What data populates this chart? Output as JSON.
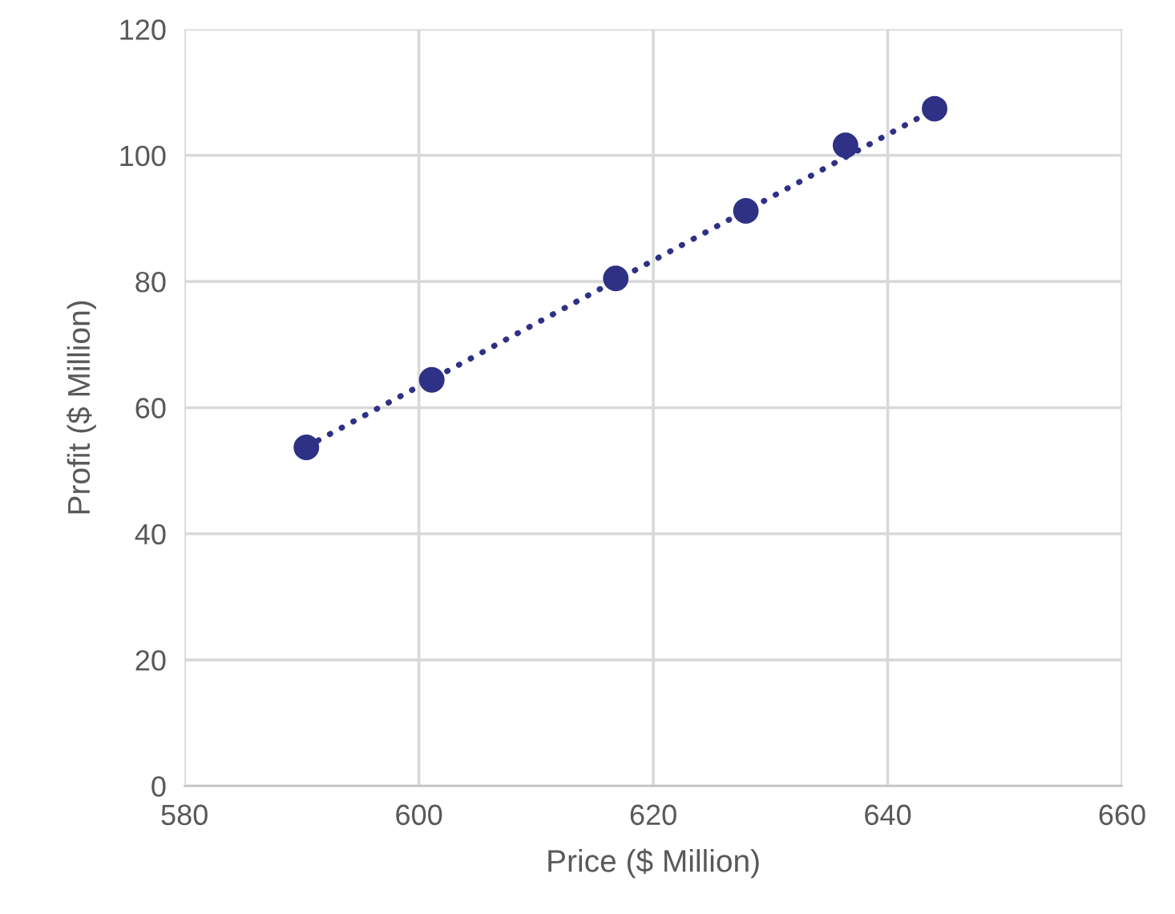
{
  "chart_data": {
    "type": "scatter",
    "xlabel": "Price ($ Million)",
    "ylabel": "Profit ($ Million)",
    "x": [
      590.4,
      601.1,
      616.8,
      627.9,
      636.4,
      644.0
    ],
    "series": [
      {
        "color": "#2e3185",
        "values": [
          53.7,
          64.4,
          80.5,
          91.2,
          101.6,
          107.4
        ],
        "marker": "circle"
      },
      {
        "type": "line",
        "color": "#2e3185",
        "x": [
          590.4,
          644.0
        ],
        "values": [
          53.8,
          107.3
        ],
        "line_style": "dotted"
      }
    ],
    "xlim": [
      580,
      660
    ],
    "xticks": [
      580,
      600,
      620,
      640,
      660
    ],
    "ylim": [
      0,
      120
    ],
    "yticks": [
      0,
      20,
      40,
      60,
      80,
      100,
      120
    ],
    "grid": true
  }
}
